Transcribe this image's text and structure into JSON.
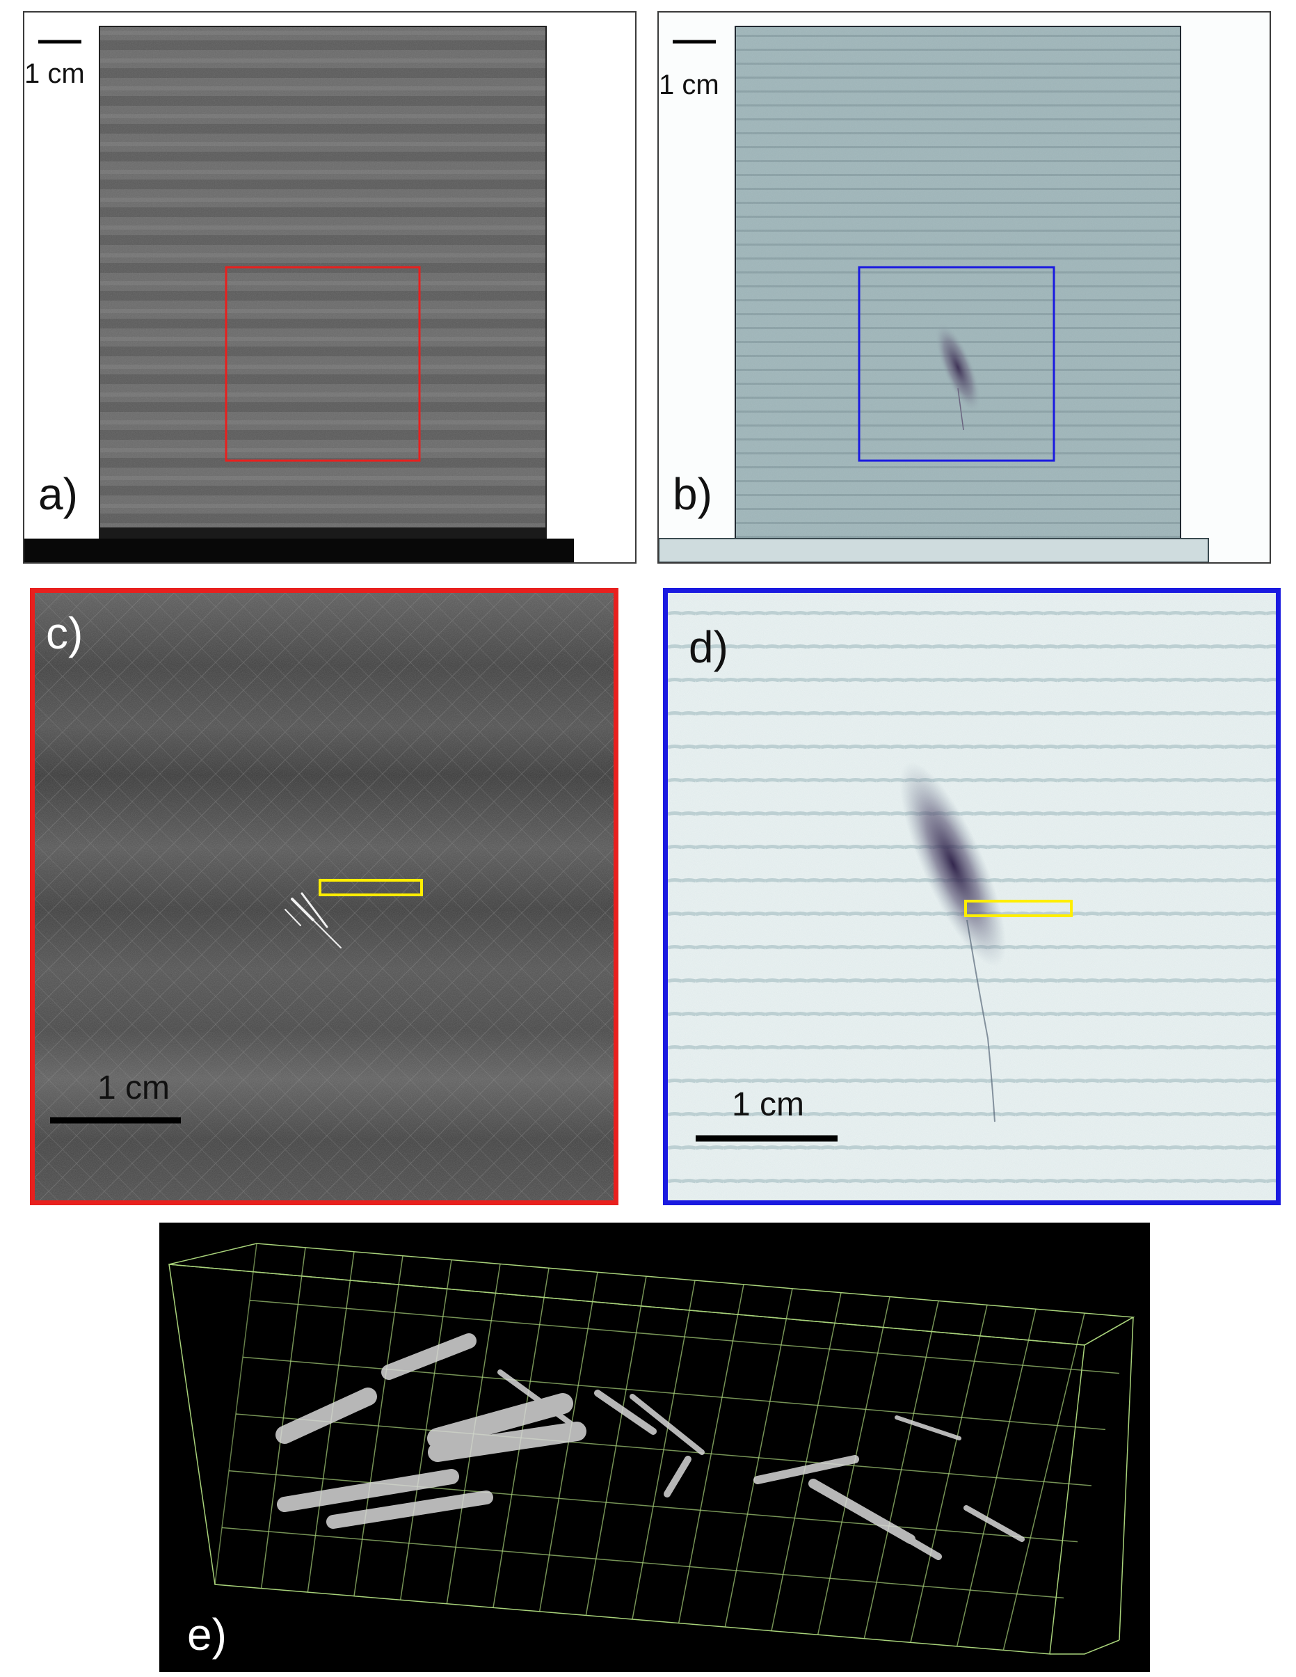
{
  "figure": {
    "panels": [
      {
        "id": "a",
        "label": "a)",
        "scale_bar": "1 cm",
        "roi_color": "#e8201e"
      },
      {
        "id": "b",
        "label": "b)",
        "scale_bar": "1 cm",
        "roi_color": "#1a1ae0"
      },
      {
        "id": "c",
        "label": "c)",
        "scale_bar": "1 cm",
        "frame_color": "#e8201e",
        "marker_color": "#ffee00"
      },
      {
        "id": "d",
        "label": "d)",
        "scale_bar": "1 cm",
        "frame_color": "#1a1ae0",
        "marker_color": "#ffee00"
      },
      {
        "id": "e",
        "label": "e)",
        "grid_color": "#a8d27a"
      }
    ]
  }
}
